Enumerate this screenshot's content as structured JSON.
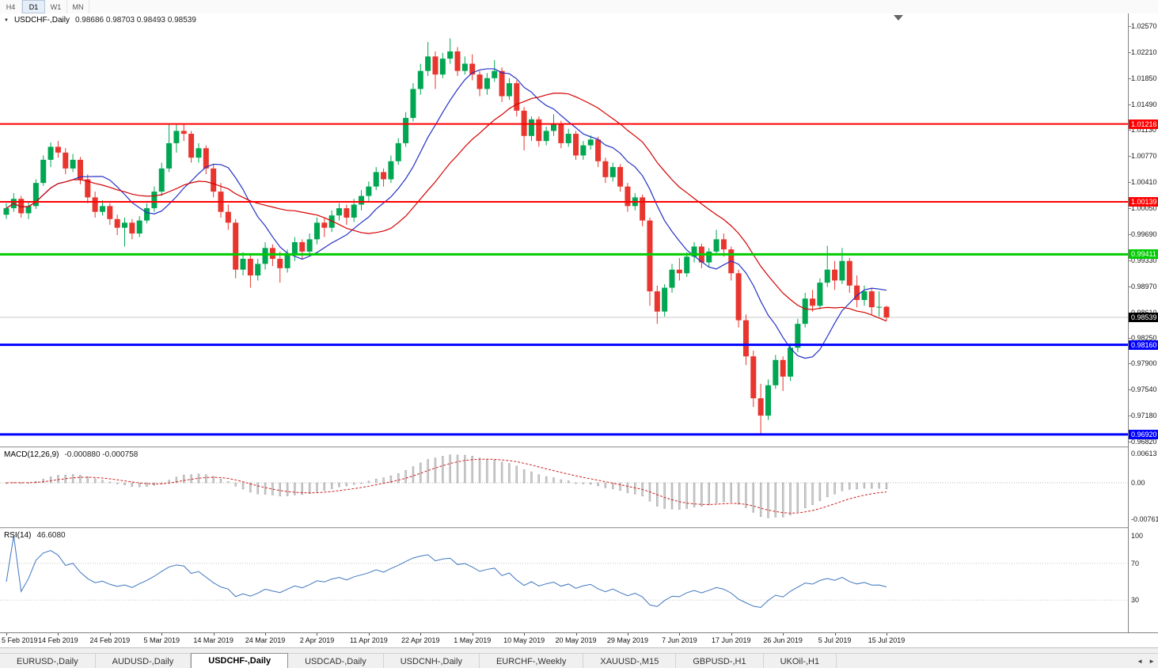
{
  "toolbar": {
    "periods": [
      {
        "label": "H4",
        "active": false
      },
      {
        "label": "D1",
        "active": true
      },
      {
        "label": "W1",
        "active": false
      },
      {
        "label": "MN",
        "active": false
      }
    ]
  },
  "chart": {
    "title": {
      "symbol": "USDCHF-,Daily",
      "ohlc": "0.98686 0.98703 0.98493 0.98539"
    },
    "price_axis_labels": [
      "1.02570",
      "1.02210",
      "1.01850",
      "1.01490",
      "1.01130",
      "1.00770",
      "1.00410",
      "1.00050",
      "0.99690",
      "0.99330",
      "0.98970",
      "0.98610",
      "0.98250",
      "0.97900",
      "0.97540",
      "0.97180",
      "0.96820"
    ],
    "hlines": [
      {
        "price": 1.01216,
        "label": "1.01216",
        "color": "#FF0000",
        "width": 2
      },
      {
        "price": 1.00139,
        "label": "1.00139",
        "color": "#FF0000",
        "width": 2
      },
      {
        "price": 0.99411,
        "label": "0.99411",
        "color": "#00CC00",
        "width": 3
      },
      {
        "price": 0.9816,
        "label": "0.98160",
        "color": "#0000FF",
        "width": 3
      },
      {
        "price": 0.9692,
        "label": "0.96920",
        "color": "#0000FF",
        "width": 3
      }
    ],
    "current_price": {
      "price": 0.98539,
      "label": "0.98539"
    },
    "colors": {
      "up": "#00A651",
      "down": "#E8352E",
      "ma_fast": "#2531C4",
      "ma_slow": "#D40000",
      "macd_bar": "#CDCDCD",
      "macd_signal": "#CC2222",
      "rsi": "#3F76BF"
    }
  },
  "chart_data": {
    "type": "candlestick",
    "symbol": "USDCHF",
    "timeframe": "Daily",
    "ylim": [
      0.9682,
      1.0257
    ],
    "last_ohlc": {
      "open": 0.98686,
      "high": 0.98703,
      "low": 0.98493,
      "close": 0.98539
    },
    "hline_levels": [
      1.01216,
      1.00139,
      0.99411,
      0.9816,
      0.9692
    ],
    "label_step": 7,
    "x_labels": [
      "5 Feb 2019",
      "14 Feb 2019",
      "24 Feb 2019",
      "5 Mar 2019",
      "14 Mar 2019",
      "24 Mar 2019",
      "2 Apr 2019",
      "11 Apr 2019",
      "22 Apr 2019",
      "1 May 2019",
      "10 May 2019",
      "20 May 2019",
      "29 May 2019",
      "7 Jun 2019",
      "17 Jun 2019",
      "26 Jun 2019",
      "5 Jul 2019",
      "15 Jul 2019"
    ],
    "candles": [
      [
        0.9996,
        1.0012,
        0.999,
        1.0005
      ],
      [
        1.0005,
        1.0026,
        1.0,
        1.0018
      ],
      [
        1.0018,
        1.0022,
        0.9992,
        0.9998
      ],
      [
        0.9998,
        1.0015,
        0.999,
        1.0008
      ],
      [
        1.0008,
        1.0045,
        1.0004,
        1.004
      ],
      [
        1.004,
        1.0078,
        1.0036,
        1.0072
      ],
      [
        1.0072,
        1.0096,
        1.0062,
        1.009
      ],
      [
        1.009,
        1.0098,
        1.0075,
        1.0082
      ],
      [
        1.0082,
        1.0088,
        1.0052,
        1.006
      ],
      [
        1.006,
        1.008,
        1.0055,
        1.0072
      ],
      [
        1.0072,
        1.0076,
        1.0038,
        1.0045
      ],
      [
        1.0045,
        1.0052,
        1.0012,
        1.002
      ],
      [
        1.002,
        1.0028,
        0.9992,
        1.0
      ],
      [
        1.0,
        1.0016,
        0.9995,
        1.0008
      ],
      [
        1.0008,
        1.0012,
        0.9982,
        0.999
      ],
      [
        0.999,
        0.9996,
        0.9968,
        0.9978
      ],
      [
        0.9978,
        0.9992,
        0.9952,
        0.9985
      ],
      [
        0.9985,
        0.999,
        0.9962,
        0.997
      ],
      [
        0.997,
        0.9994,
        0.9965,
        0.9988
      ],
      [
        0.9988,
        1.0012,
        0.9984,
        1.0005
      ],
      [
        1.0005,
        1.0035,
        1.0,
        1.0028
      ],
      [
        1.0028,
        1.0068,
        1.0022,
        1.006
      ],
      [
        1.006,
        1.0122,
        1.0055,
        1.0095
      ],
      [
        1.0095,
        1.0122,
        1.0082,
        1.0112
      ],
      [
        1.0112,
        1.0121,
        1.0098,
        1.0108
      ],
      [
        1.0108,
        1.0112,
        1.0068,
        1.0075
      ],
      [
        1.0075,
        1.0095,
        1.0068,
        1.0088
      ],
      [
        1.0088,
        1.0092,
        1.0052,
        1.006
      ],
      [
        1.006,
        1.0066,
        1.002,
        1.0028
      ],
      [
        1.0028,
        1.004,
        0.9992,
        1.0
      ],
      [
        1.0,
        1.001,
        0.9975,
        0.9985
      ],
      [
        0.9985,
        0.999,
        0.9908,
        0.992
      ],
      [
        0.992,
        0.9944,
        0.9912,
        0.9935
      ],
      [
        0.9935,
        0.994,
        0.9895,
        0.9912
      ],
      [
        0.9912,
        0.9935,
        0.9905,
        0.9928
      ],
      [
        0.9928,
        0.9958,
        0.992,
        0.995
      ],
      [
        0.995,
        0.9955,
        0.9925,
        0.9935
      ],
      [
        0.9935,
        0.9945,
        0.9902,
        0.9922
      ],
      [
        0.9922,
        0.9948,
        0.9916,
        0.994
      ],
      [
        0.994,
        0.9965,
        0.9932,
        0.9958
      ],
      [
        0.9958,
        0.9962,
        0.9935,
        0.9945
      ],
      [
        0.9945,
        0.997,
        0.9938,
        0.9962
      ],
      [
        0.9962,
        0.9992,
        0.9955,
        0.9985
      ],
      [
        0.9985,
        0.9992,
        0.9965,
        0.9978
      ],
      [
        0.9978,
        1.0002,
        0.9972,
        0.9995
      ],
      [
        0.9995,
        1.0012,
        0.9988,
        1.0005
      ],
      [
        1.0005,
        1.001,
        0.9982,
        0.9992
      ],
      [
        0.9992,
        1.0018,
        0.9986,
        1.001
      ],
      [
        1.001,
        1.003,
        1.0002,
        1.0022
      ],
      [
        1.0022,
        1.0042,
        1.0015,
        1.0035
      ],
      [
        1.0035,
        1.0062,
        1.003,
        1.0055
      ],
      [
        1.0055,
        1.006,
        1.0035,
        1.0045
      ],
      [
        1.0045,
        1.0078,
        1.004,
        1.007
      ],
      [
        1.007,
        1.0102,
        1.0065,
        1.0095
      ],
      [
        1.0095,
        1.0138,
        1.009,
        1.013
      ],
      [
        1.013,
        1.0178,
        1.0125,
        1.017
      ],
      [
        1.017,
        1.0205,
        1.0162,
        1.0195
      ],
      [
        1.0195,
        1.0235,
        1.0188,
        1.0215
      ],
      [
        1.0215,
        1.0222,
        1.017,
        1.019
      ],
      [
        1.019,
        1.022,
        1.0185,
        1.0212
      ],
      [
        1.0212,
        1.024,
        1.0205,
        1.0222
      ],
      [
        1.0222,
        1.0228,
        1.0188,
        1.0195
      ],
      [
        1.0195,
        1.0215,
        1.019,
        1.0205
      ],
      [
        1.0205,
        1.0218,
        1.0182,
        1.019
      ],
      [
        1.019,
        1.0195,
        1.016,
        1.017
      ],
      [
        1.017,
        1.0192,
        1.0162,
        1.0185
      ],
      [
        1.0185,
        1.021,
        1.018,
        1.0195
      ],
      [
        1.0195,
        1.02,
        1.0152,
        1.016
      ],
      [
        1.016,
        1.0185,
        1.0155,
        1.0178
      ],
      [
        1.0178,
        1.0182,
        1.0132,
        1.014
      ],
      [
        1.014,
        1.0145,
        1.0085,
        1.0105
      ],
      [
        1.0105,
        1.0132,
        1.0098,
        1.0128
      ],
      [
        1.0128,
        1.0132,
        1.009,
        1.0098
      ],
      [
        1.0098,
        1.0118,
        1.0092,
        1.0112
      ],
      [
        1.0112,
        1.0135,
        1.0105,
        1.0122
      ],
      [
        1.0122,
        1.0126,
        1.0088,
        1.0095
      ],
      [
        1.0095,
        1.0115,
        1.009,
        1.0108
      ],
      [
        1.0108,
        1.0112,
        1.0072,
        1.0078
      ],
      [
        1.0078,
        1.0098,
        1.0072,
        1.0092
      ],
      [
        1.0092,
        1.0106,
        1.0086,
        1.01
      ],
      [
        1.01,
        1.0104,
        1.0062,
        1.007
      ],
      [
        1.007,
        1.0075,
        1.004,
        1.0048
      ],
      [
        1.0048,
        1.0068,
        1.0042,
        1.0062
      ],
      [
        1.0062,
        1.0066,
        1.0028,
        1.0035
      ],
      [
        1.0035,
        1.004,
        1.0,
        1.0008
      ],
      [
        1.0008,
        1.0026,
        1.0002,
        1.002
      ],
      [
        1.002,
        1.0024,
        0.998,
        0.9988
      ],
      [
        0.9988,
        0.9992,
        0.987,
        0.989
      ],
      [
        0.989,
        0.9898,
        0.9845,
        0.9862
      ],
      [
        0.9862,
        0.99,
        0.9855,
        0.9895
      ],
      [
        0.9895,
        0.9928,
        0.9888,
        0.992
      ],
      [
        0.992,
        0.9936,
        0.9905,
        0.9915
      ],
      [
        0.9915,
        0.9944,
        0.991,
        0.9938
      ],
      [
        0.9938,
        0.9958,
        0.993,
        0.9952
      ],
      [
        0.9952,
        0.9956,
        0.9922,
        0.993
      ],
      [
        0.993,
        0.995,
        0.9924,
        0.9945
      ],
      [
        0.9945,
        0.9975,
        0.994,
        0.9962
      ],
      [
        0.9962,
        0.997,
        0.9938,
        0.9948
      ],
      [
        0.9948,
        0.9952,
        0.9905,
        0.9915
      ],
      [
        0.9915,
        0.992,
        0.984,
        0.985
      ],
      [
        0.985,
        0.9858,
        0.9788,
        0.98
      ],
      [
        0.98,
        0.9808,
        0.973,
        0.9742
      ],
      [
        0.9742,
        0.9762,
        0.9693,
        0.9718
      ],
      [
        0.9718,
        0.9768,
        0.9712,
        0.976
      ],
      [
        0.976,
        0.9802,
        0.9755,
        0.9795
      ],
      [
        0.9795,
        0.98,
        0.9752,
        0.9772
      ],
      [
        0.9772,
        0.9818,
        0.9766,
        0.9812
      ],
      [
        0.9812,
        0.9852,
        0.9806,
        0.9845
      ],
      [
        0.9845,
        0.9888,
        0.984,
        0.988
      ],
      [
        0.988,
        0.9892,
        0.9862,
        0.987
      ],
      [
        0.987,
        0.9908,
        0.9865,
        0.9902
      ],
      [
        0.9902,
        0.9953,
        0.9896,
        0.992
      ],
      [
        0.992,
        0.9932,
        0.9892,
        0.9905
      ],
      [
        0.9905,
        0.995,
        0.99,
        0.9932
      ],
      [
        0.9932,
        0.9936,
        0.9888,
        0.9898
      ],
      [
        0.9898,
        0.9912,
        0.9868,
        0.9878
      ],
      [
        0.9878,
        0.9898,
        0.987,
        0.989
      ],
      [
        0.989,
        0.9894,
        0.9858,
        0.9868
      ],
      [
        0.9868,
        0.989,
        0.9855,
        0.98686
      ],
      [
        0.98686,
        0.98703,
        0.98493,
        0.98539
      ]
    ]
  },
  "macd": {
    "title": "MACD(12,26,9)",
    "values": "-0.000880 -0.000758",
    "params": [
      12,
      26,
      9
    ],
    "axis": [
      "0.00613",
      "0.00",
      "-0.00761"
    ]
  },
  "rsi": {
    "title": "RSI(14)",
    "value": "46.6080",
    "period": 14,
    "levels": [
      70,
      30
    ],
    "axis": [
      "100",
      "70",
      "30"
    ]
  },
  "tabs": [
    {
      "label": "EURUSD-,Daily",
      "active": false
    },
    {
      "label": "AUDUSD-,Daily",
      "active": false
    },
    {
      "label": "USDCHF-,Daily",
      "active": true
    },
    {
      "label": "USDCAD-,Daily",
      "active": false
    },
    {
      "label": "USDCNH-,Daily",
      "active": false
    },
    {
      "label": "EURCHF-,Weekly",
      "active": false
    },
    {
      "label": "XAUUSD-,M15",
      "active": false
    },
    {
      "label": "GBPUSD-,H1",
      "active": false
    },
    {
      "label": "UKOil-,H1",
      "active": false
    }
  ],
  "tab_scroll": {
    "left": "◄",
    "right": "►"
  }
}
